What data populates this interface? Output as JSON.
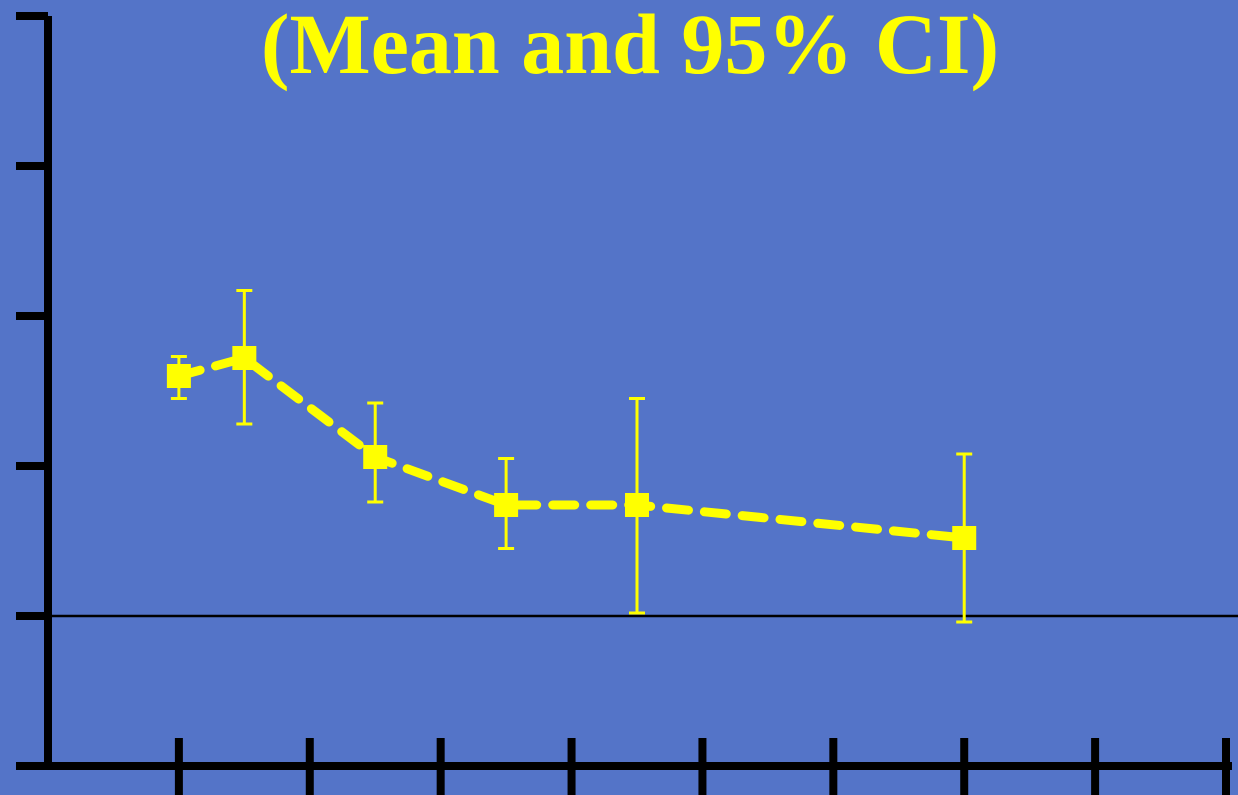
{
  "chart_data": {
    "type": "line",
    "title": "(Mean and 95% CI)",
    "xlabel": "",
    "ylabel": "",
    "x_ticks": 9,
    "y_ticks": 6,
    "xlim": [
      0,
      9
    ],
    "ylim": [
      0,
      5
    ],
    "reference_line_y": 1,
    "series": [
      {
        "style": "dashed-with-square-markers",
        "points": [
          {
            "x": 1.0,
            "y": 2.6,
            "lower": 2.45,
            "upper": 2.73
          },
          {
            "x": 1.5,
            "y": 2.72,
            "lower": 2.28,
            "upper": 3.17
          },
          {
            "x": 2.5,
            "y": 2.06,
            "lower": 1.76,
            "upper": 2.42
          },
          {
            "x": 3.5,
            "y": 1.74,
            "lower": 1.45,
            "upper": 2.05
          },
          {
            "x": 4.5,
            "y": 1.74,
            "lower": 1.02,
            "upper": 2.45
          },
          {
            "x": 7.0,
            "y": 1.52,
            "lower": 0.96,
            "upper": 2.08
          }
        ]
      }
    ],
    "colors": {
      "background": "#5474c8",
      "series": "#ffff00",
      "axis": "#000000",
      "title": "#ffff00"
    }
  }
}
